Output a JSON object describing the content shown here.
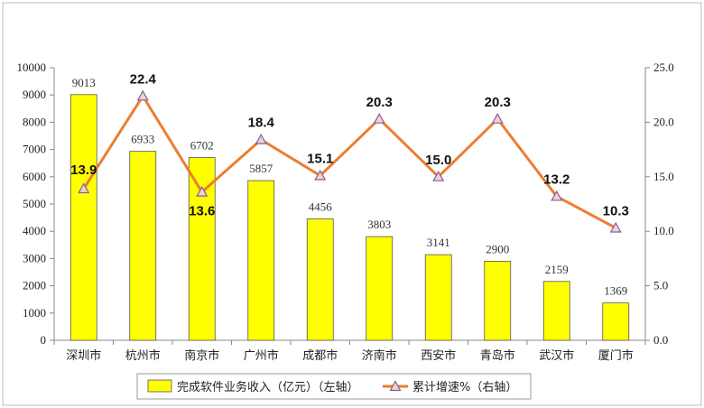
{
  "chart_data": {
    "type": "bar",
    "categories": [
      "深圳市",
      "杭州市",
      "南京市",
      "广州市",
      "成都市",
      "济南市",
      "西安市",
      "青岛市",
      "武汉市",
      "厦门市"
    ],
    "series": [
      {
        "name": "完成软件业务收入（亿元）（左轴）",
        "type": "bar",
        "axis": "left",
        "color": "#FFFF00",
        "values": [
          9013,
          6933,
          6702,
          5857,
          4456,
          3803,
          3141,
          2900,
          2159,
          1369
        ],
        "labels": [
          "9013",
          "6933",
          "6702",
          "5857",
          "4456",
          "3803",
          "3141",
          "2900",
          "2159",
          "1369"
        ]
      },
      {
        "name": "累计增速%（右轴）",
        "type": "line",
        "axis": "right",
        "color": "#ED7D31",
        "marker_color": "#7F5FA8",
        "values": [
          13.9,
          22.4,
          13.6,
          18.4,
          15.1,
          20.3,
          15.0,
          20.3,
          13.2,
          10.3
        ],
        "labels": [
          "13.9",
          "22.4",
          "13.6",
          "18.4",
          "15.1",
          "20.3",
          "15.0",
          "20.3",
          "13.2",
          "10.3"
        ]
      }
    ],
    "ylim_left": [
      0,
      10000
    ],
    "ylim_right": [
      0,
      25
    ],
    "left_ticks": [
      "0",
      "1000",
      "2000",
      "3000",
      "4000",
      "5000",
      "6000",
      "7000",
      "8000",
      "9000",
      "10000"
    ],
    "right_ticks": [
      "0.0",
      "5.0",
      "10.0",
      "15.0",
      "20.0",
      "25.0"
    ],
    "grid": false,
    "legend_position": "bottom"
  }
}
